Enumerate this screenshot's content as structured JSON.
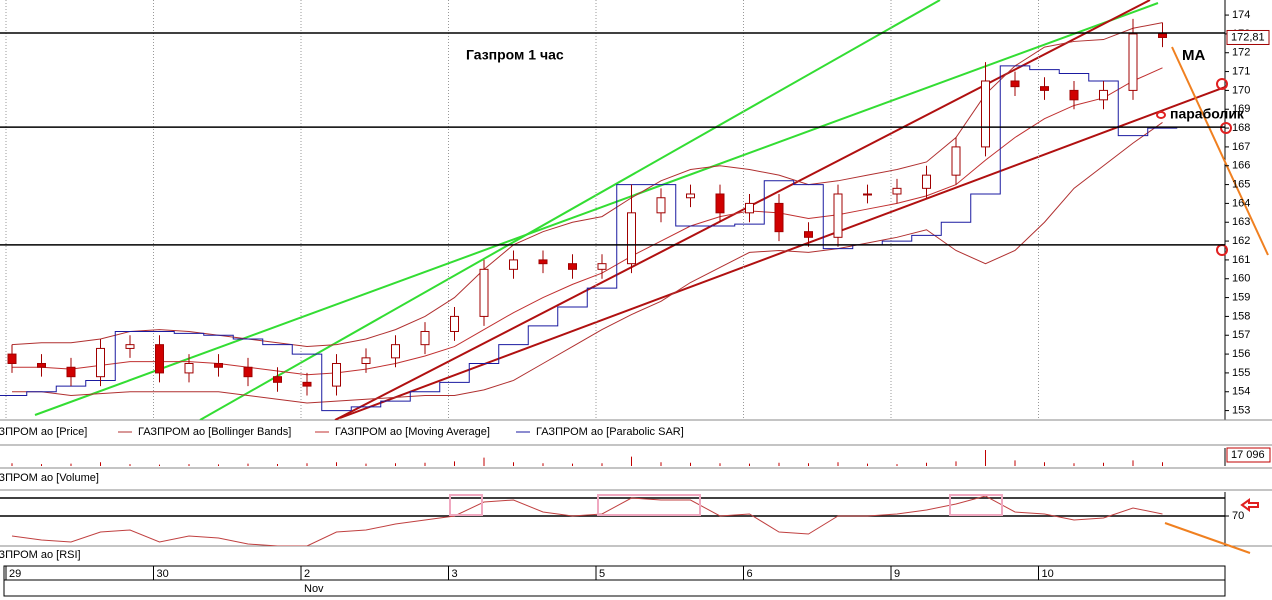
{
  "chart_data": {
    "type": "candlestick",
    "title": "Газпром   1 час",
    "annotations": [
      "MA",
      "параболик"
    ],
    "categories": [
      "29",
      null,
      null,
      null,
      null,
      "30",
      null,
      null,
      null,
      null,
      "2",
      null,
      null,
      null,
      null,
      "3",
      null,
      null,
      null,
      null,
      "5",
      null,
      null,
      null,
      null,
      "6",
      null,
      null,
      null,
      null,
      "9",
      null,
      null,
      null,
      null,
      "10",
      null,
      null,
      null,
      null
    ],
    "month_label": "Nov",
    "open": [
      156,
      155.5,
      155.3,
      154.8,
      156.3,
      156.5,
      155,
      155.5,
      155.3,
      154.8,
      154.5,
      154.3,
      155.5,
      155.8,
      156.5,
      157.2,
      158,
      160.5,
      161,
      160.8,
      160.5,
      160.8,
      163.5,
      164.3,
      164.5,
      163.5,
      164,
      162.5,
      162.2,
      164.5,
      164.5,
      164.8,
      165.5,
      167,
      170.5,
      170.2,
      170,
      169.5,
      170,
      173
    ],
    "high": [
      156.5,
      156,
      155.8,
      156.8,
      157,
      157,
      156,
      156,
      155.8,
      155.3,
      155,
      156,
      156.3,
      157,
      157.7,
      158.5,
      161,
      161.5,
      161.5,
      161.3,
      161.3,
      165,
      164.8,
      165,
      165,
      164.5,
      164.5,
      163,
      165,
      165,
      165.3,
      166,
      167.5,
      171.5,
      171,
      170.7,
      170.5,
      170.5,
      173.8,
      173.6
    ],
    "low": [
      155,
      154.8,
      154.3,
      154.3,
      155.8,
      154.5,
      154.5,
      154.8,
      154.3,
      154,
      153.8,
      153.8,
      155,
      155.3,
      156,
      156.7,
      157.5,
      160,
      160.3,
      160,
      160,
      160.3,
      163,
      163.8,
      163,
      163,
      162,
      161.7,
      161.7,
      164,
      164,
      164.3,
      165,
      166.5,
      169.7,
      169.5,
      169,
      169,
      169.5,
      172.3
    ],
    "close": [
      155.5,
      155.3,
      154.8,
      156.3,
      156.5,
      155,
      155.5,
      155.3,
      154.8,
      154.5,
      154.3,
      155.5,
      155.8,
      156.5,
      157.2,
      158,
      160.5,
      161,
      160.8,
      160.5,
      160.8,
      163.5,
      164.3,
      164.5,
      163.5,
      164,
      162.5,
      162.2,
      164.5,
      164.5,
      164.8,
      165.5,
      167,
      170.5,
      170.2,
      170,
      169.5,
      170,
      173,
      172.81
    ],
    "last_price_label": "172,81",
    "up_color": "#ffffff",
    "down_color": "#d00000",
    "candle_edge": "#a00000",
    "series": [
      {
        "name": "ГАЗПРОМ ао [Price]",
        "color": "#a00000",
        "values": null
      },
      {
        "name": "ГАЗПРОМ ао [Bollinger Bands]",
        "color": "#b03030",
        "upper": [
          156.5,
          156.6,
          156.6,
          156.8,
          157.2,
          157.3,
          157.2,
          157,
          156.8,
          156.6,
          156.4,
          156.5,
          156.8,
          157.3,
          158,
          159,
          160.5,
          161.8,
          162.5,
          163,
          163.3,
          164.3,
          165.2,
          165.8,
          166,
          165.8,
          165.5,
          165,
          165.2,
          165.5,
          165.8,
          166.2,
          167.5,
          169.8,
          171.3,
          172.3,
          172.6,
          172.7,
          173.3,
          173.6
        ],
        "lower": [
          154,
          154,
          153.8,
          153.9,
          154,
          154,
          154,
          154,
          153.8,
          153.6,
          153.4,
          153.5,
          153.6,
          153.7,
          153.8,
          153.8,
          154.1,
          154.6,
          155.5,
          156.4,
          157.3,
          158.1,
          158.8,
          159.8,
          160.6,
          161.4,
          161.5,
          161.4,
          161.6,
          161.9,
          162.2,
          162.6,
          161.5,
          160.8,
          161.5,
          163,
          164.8,
          166,
          167.2,
          168.3
        ]
      },
      {
        "name": "ГАЗПРОМ ао [Moving Average]",
        "color": "#c03030",
        "values": [
          155.3,
          155.3,
          155.2,
          155.4,
          155.6,
          155.6,
          155.6,
          155.5,
          155.3,
          155.1,
          154.9,
          155,
          155.2,
          155.5,
          155.9,
          156.4,
          157.3,
          158.2,
          159,
          159.7,
          160.3,
          161.2,
          162,
          162.8,
          163.3,
          163.6,
          163.5,
          163.2,
          163.4,
          163.7,
          164,
          164.4,
          165,
          166.3,
          167.5,
          168.5,
          169.2,
          169.6,
          170.5,
          171.2
        ]
      },
      {
        "name": "ГАЗПРОМ ао [Parabolic SAR]",
        "color": "#1a1aa0",
        "values": [
          153.8,
          154,
          154.3,
          154.6,
          157.2,
          157.2,
          157.1,
          157,
          156.8,
          156.5,
          156,
          153,
          153.2,
          153.5,
          154,
          154.5,
          155.5,
          156.5,
          157.5,
          158.5,
          159.5,
          165,
          165,
          162.8,
          162.8,
          162.9,
          165.2,
          165,
          161.6,
          161.8,
          162,
          162.3,
          163,
          164.5,
          171.3,
          171.1,
          170.9,
          170.5,
          167.6,
          168
        ]
      }
    ],
    "ylim": [
      152.5,
      174.8
    ],
    "yticks": [
      153,
      154,
      155,
      156,
      157,
      158,
      159,
      160,
      161,
      162,
      163,
      164,
      165,
      166,
      167,
      168,
      169,
      170,
      171,
      172,
      173,
      174
    ],
    "levels": [
      173.05,
      168.05,
      161.8
    ],
    "volume": {
      "name": "ГАЗПРОМ ао [Volume]",
      "color": "#c00000",
      "values": [
        3000,
        2000,
        2500,
        4000,
        2000,
        1500,
        2000,
        1800,
        2500,
        2200,
        3000,
        4000,
        2500,
        3000,
        3500,
        5000,
        9000,
        4000,
        3000,
        2500,
        3000,
        10000,
        4000,
        3500,
        3000,
        2500,
        3500,
        3000,
        4000,
        2500,
        2000,
        3500,
        5000,
        17096,
        6000,
        4000,
        3000,
        3500,
        6000,
        4000
      ],
      "ylim": [
        0,
        17096
      ],
      "yticks": [
        {
          "value": 17096,
          "label": "17 096"
        }
      ]
    },
    "rsi": {
      "name": "ГАЗПРОМ ао [RSI]",
      "color": "#c04040",
      "values": [
        60,
        58,
        57,
        62,
        63,
        57,
        60,
        59,
        56,
        55,
        55,
        62,
        63,
        66,
        68,
        70,
        77,
        78,
        72,
        70,
        71,
        79,
        78,
        78,
        70,
        71,
        62,
        61,
        70,
        70,
        71,
        73,
        76,
        80,
        72,
        71,
        68,
        69,
        74,
        71
      ],
      "ylim": [
        55,
        82
      ],
      "yticks": [
        70
      ],
      "levels": [
        79,
        70
      ]
    }
  }
}
